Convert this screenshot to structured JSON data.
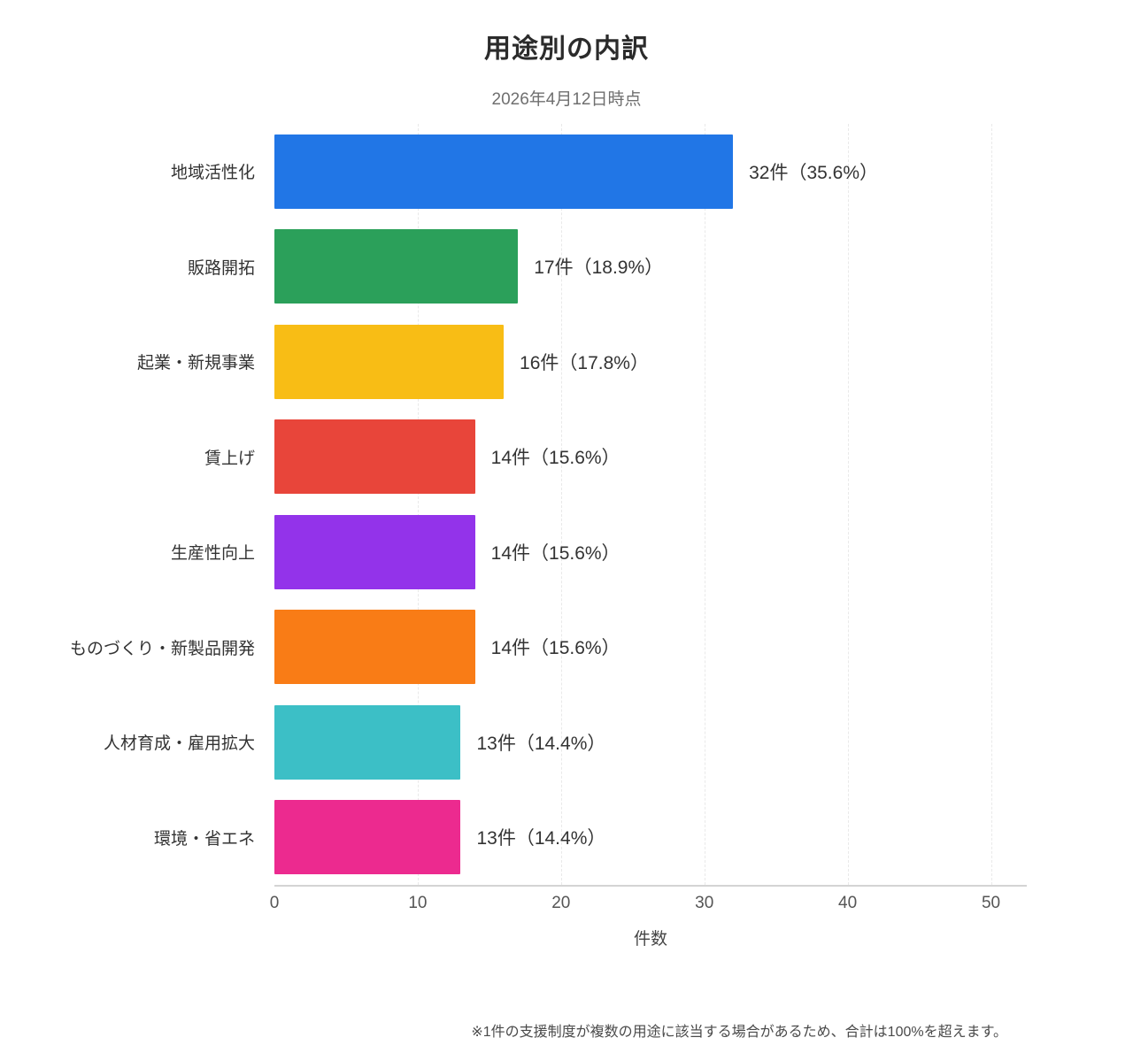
{
  "chart_data": {
    "type": "bar",
    "orientation": "horizontal",
    "title": "用途別の内訳",
    "subtitle": "2026年4月12日時点",
    "xlabel": "件数",
    "xlim": [
      0,
      52.5
    ],
    "xticks": [
      0,
      10,
      20,
      30,
      40,
      50
    ],
    "grid": "vertical-dashed",
    "legend": "none",
    "categories": [
      "地域活性化",
      "販路開拓",
      "起業・新規事業",
      "賃上げ",
      "生産性向上",
      "ものづくり・新製品開発",
      "人材育成・雇用拡大",
      "環境・省エネ"
    ],
    "values": [
      32,
      17,
      16,
      14,
      14,
      14,
      13,
      13
    ],
    "value_labels": [
      "32件（35.6%）",
      "17件（18.9%）",
      "16件（17.8%）",
      "14件（15.6%）",
      "14件（15.6%）",
      "14件（15.6%）",
      "13件（14.4%）",
      "13件（14.4%）"
    ],
    "colors": [
      "#2176e6",
      "#2ba05a",
      "#f8bd15",
      "#e8453a",
      "#9333ea",
      "#f97c16",
      "#3cbfc6",
      "#ec2a8f"
    ],
    "footnote": "※1件の支援制度が複数の用途に該当する場合があるため、合計は100%を超えます。"
  }
}
